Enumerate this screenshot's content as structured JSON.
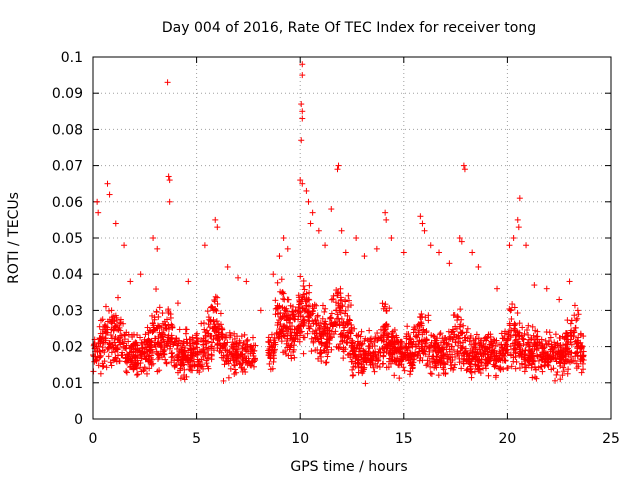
{
  "chart_data": {
    "type": "scatter",
    "title": "Day 004 of 2016, Rate Of TEC Index for receiver tong",
    "xlabel": "GPS time / hours",
    "ylabel": "ROTI / TECUs",
    "xlim": [
      0,
      25
    ],
    "ylim": [
      0,
      0.1
    ],
    "x_ticks": [
      "0",
      "5",
      "10",
      "15",
      "20",
      "25"
    ],
    "y_ticks": [
      "0",
      "0.01",
      "0.02",
      "0.03",
      "0.04",
      "0.05",
      "0.06",
      "0.07",
      "0.08",
      "0.09",
      "0.1"
    ],
    "grid": true,
    "marker": "+",
    "color": "#ff0000",
    "series": [
      {
        "name": "ROTI",
        "points": [
          [
            3.6,
            0.093
          ],
          [
            10.1,
            0.098
          ],
          [
            10.1,
            0.095
          ],
          [
            10.05,
            0.087
          ],
          [
            10.1,
            0.085
          ],
          [
            10.1,
            0.083
          ],
          [
            10.05,
            0.077
          ],
          [
            3.65,
            0.067
          ],
          [
            3.7,
            0.066
          ],
          [
            3.7,
            0.06
          ],
          [
            10.0,
            0.066
          ],
          [
            10.1,
            0.065
          ],
          [
            11.85,
            0.07
          ],
          [
            11.8,
            0.069
          ],
          [
            17.9,
            0.07
          ],
          [
            17.95,
            0.069
          ],
          [
            0.2,
            0.06
          ],
          [
            0.25,
            0.057
          ],
          [
            0.7,
            0.065
          ],
          [
            0.8,
            0.062
          ],
          [
            20.6,
            0.061
          ],
          [
            20.5,
            0.055
          ],
          [
            20.55,
            0.053
          ],
          [
            5.9,
            0.055
          ],
          [
            6.0,
            0.053
          ],
          [
            14.1,
            0.057
          ],
          [
            14.15,
            0.055
          ],
          [
            15.8,
            0.056
          ],
          [
            15.9,
            0.054
          ],
          [
            16.0,
            0.052
          ],
          [
            10.6,
            0.057
          ],
          [
            10.5,
            0.054
          ],
          [
            10.4,
            0.06
          ],
          [
            10.3,
            0.063
          ],
          [
            11.5,
            0.058
          ],
          [
            12.7,
            0.05
          ],
          [
            2.9,
            0.05
          ],
          [
            3.1,
            0.047
          ],
          [
            7.0,
            0.039
          ],
          [
            8.1,
            0.03
          ],
          [
            9.0,
            0.045
          ],
          [
            9.2,
            0.05
          ],
          [
            9.4,
            0.047
          ],
          [
            10.9,
            0.052
          ],
          [
            11.2,
            0.048
          ],
          [
            12.0,
            0.052
          ],
          [
            12.2,
            0.046
          ],
          [
            13.1,
            0.045
          ],
          [
            13.7,
            0.047
          ],
          [
            14.4,
            0.05
          ],
          [
            15.0,
            0.046
          ],
          [
            16.3,
            0.048
          ],
          [
            16.7,
            0.046
          ],
          [
            17.2,
            0.043
          ],
          [
            17.7,
            0.05
          ],
          [
            17.8,
            0.049
          ],
          [
            18.3,
            0.046
          ],
          [
            18.6,
            0.042
          ],
          [
            19.5,
            0.036
          ],
          [
            20.1,
            0.048
          ],
          [
            20.3,
            0.05
          ],
          [
            20.9,
            0.048
          ],
          [
            21.3,
            0.037
          ],
          [
            21.9,
            0.036
          ],
          [
            22.5,
            0.033
          ],
          [
            23.0,
            0.038
          ],
          [
            23.4,
            0.03
          ],
          [
            1.1,
            0.054
          ],
          [
            1.5,
            0.048
          ],
          [
            1.8,
            0.038
          ],
          [
            2.3,
            0.04
          ],
          [
            4.1,
            0.032
          ],
          [
            4.6,
            0.038
          ],
          [
            5.4,
            0.048
          ],
          [
            6.5,
            0.042
          ],
          [
            7.4,
            0.038
          ],
          [
            8.7,
            0.04
          ]
        ]
      }
    ]
  }
}
